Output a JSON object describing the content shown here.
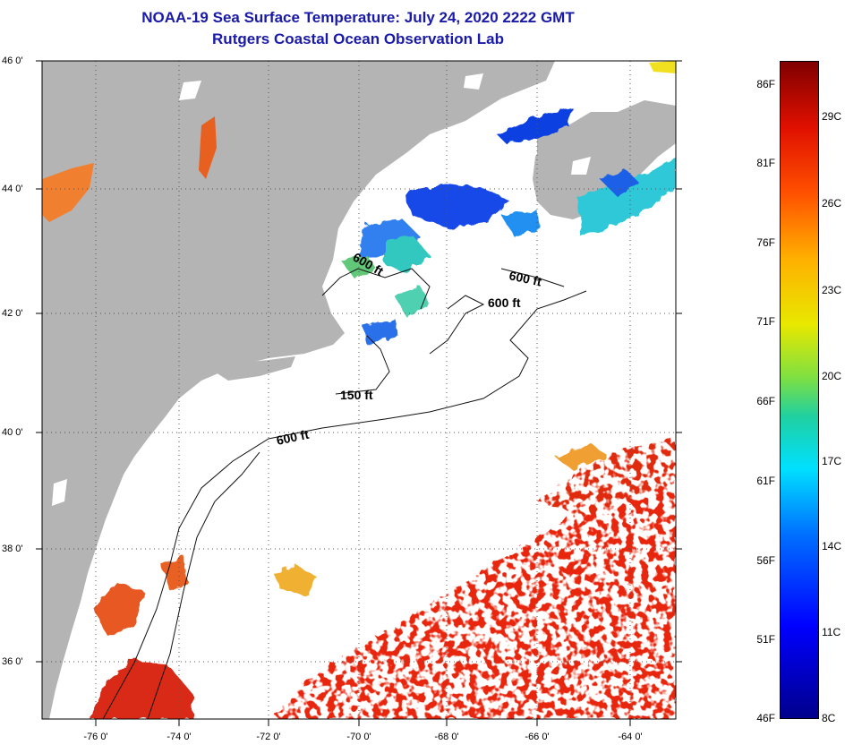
{
  "title": {
    "line1": "NOAA-19 Sea Surface Temperature:  July 24, 2020 2222 GMT",
    "line2": "Rutgers Coastal Ocean Observation Lab"
  },
  "latitude_labels": [
    "46 0'",
    "44 0'",
    "42 0'",
    "40 0'",
    "38 0'",
    "36 0'"
  ],
  "longitude_labels": [
    "-76 0'",
    "-74 0'",
    "-72 0'",
    "-70 0'",
    "-68 0'",
    "-66 0'",
    "-64 0'"
  ],
  "depth_contour_labels": [
    "600 ft",
    "600 ft",
    "600 ft",
    "150 ft",
    "600 ft"
  ],
  "colorbar": {
    "fahrenheit_labels": [
      "86F",
      "81F",
      "76F",
      "71F",
      "66F",
      "61F",
      "56F",
      "51F",
      "46F"
    ],
    "celsius_labels": [
      "29C",
      "26C",
      "23C",
      "20C",
      "17C",
      "14C",
      "11C",
      "8C"
    ]
  },
  "colors": {
    "land": "#b4b4b4",
    "cloud": "#ffffff",
    "warm_water": "#e82810",
    "title": "#1a1aa8"
  }
}
